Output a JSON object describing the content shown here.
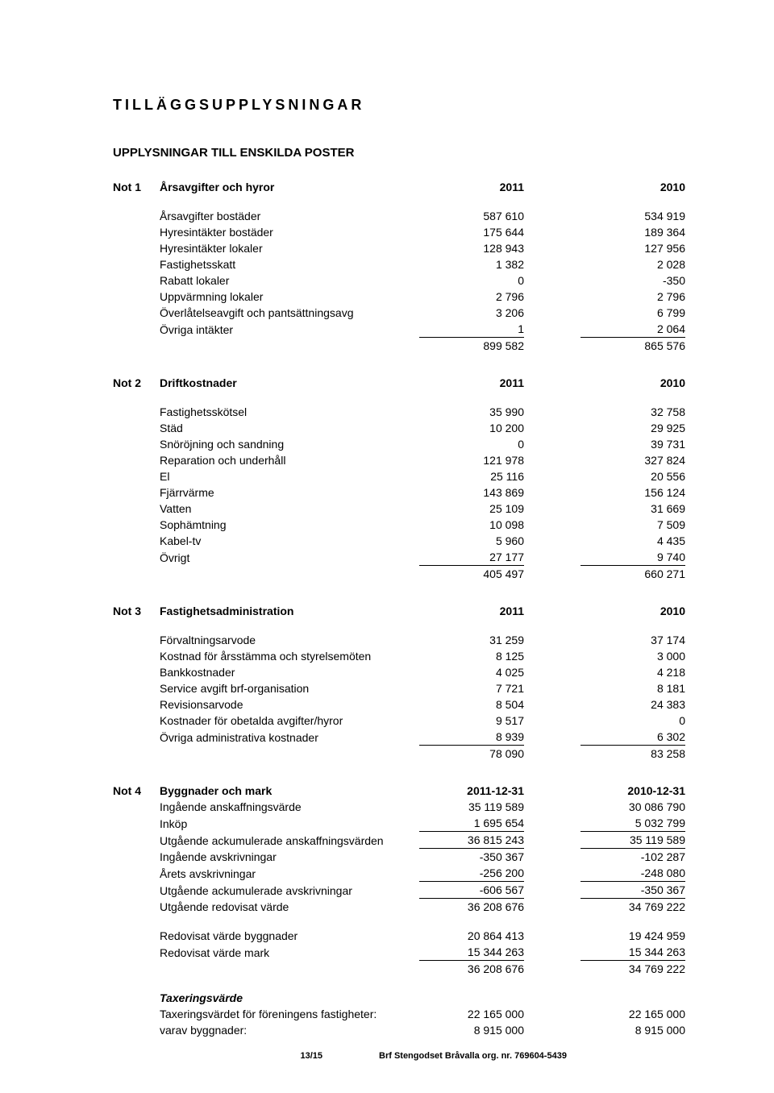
{
  "title": "TILLÄGGSUPPLYSNINGAR",
  "subtitle": "UPPLYSNINGAR TILL ENSKILDA POSTER",
  "notes": {
    "n1": {
      "tag": "Not 1",
      "header": {
        "label": "Årsavgifter och hyror",
        "c1": "2011",
        "c2": "2010"
      },
      "rows": [
        {
          "label": "Årsavgifter bostäder",
          "c1": "587 610",
          "c2": "534 919"
        },
        {
          "label": "Hyresintäkter bostäder",
          "c1": "175 644",
          "c2": "189 364"
        },
        {
          "label": "Hyresintäkter lokaler",
          "c1": "128 943",
          "c2": "127 956"
        },
        {
          "label": "Fastighetsskatt",
          "c1": "1 382",
          "c2": "2 028"
        },
        {
          "label": "Rabatt lokaler",
          "c1": "0",
          "c2": "-350"
        },
        {
          "label": "Uppvärmning lokaler",
          "c1": "2 796",
          "c2": "2 796"
        },
        {
          "label": "Överlåtelseavgift och pantsättningsavg",
          "c1": "3 206",
          "c2": "6 799"
        },
        {
          "label": "Övriga intäkter",
          "c1": "1",
          "c2": "2 064",
          "under": true
        }
      ],
      "total": {
        "label": "",
        "c1": "899 582",
        "c2": "865 576"
      }
    },
    "n2": {
      "tag": "Not 2",
      "header": {
        "label": "Driftkostnader",
        "c1": "2011",
        "c2": "2010"
      },
      "rows": [
        {
          "label": "Fastighetsskötsel",
          "c1": "35 990",
          "c2": "32 758"
        },
        {
          "label": "Städ",
          "c1": "10 200",
          "c2": "29 925"
        },
        {
          "label": "Snöröjning och sandning",
          "c1": "0",
          "c2": "39 731"
        },
        {
          "label": "Reparation och underhåll",
          "c1": "121 978",
          "c2": "327 824"
        },
        {
          "label": "El",
          "c1": "25 116",
          "c2": "20 556"
        },
        {
          "label": "Fjärrvärme",
          "c1": "143 869",
          "c2": "156 124"
        },
        {
          "label": "Vatten",
          "c1": "25 109",
          "c2": "31 669"
        },
        {
          "label": "Sophämtning",
          "c1": "10 098",
          "c2": "7 509"
        },
        {
          "label": "Kabel-tv",
          "c1": "5 960",
          "c2": "4 435"
        },
        {
          "label": "Övrigt",
          "c1": "27 177",
          "c2": "9 740",
          "under": true
        }
      ],
      "total": {
        "label": "",
        "c1": "405 497",
        "c2": "660 271"
      }
    },
    "n3": {
      "tag": "Not 3",
      "header": {
        "label": "Fastighetsadministration",
        "c1": "2011",
        "c2": "2010"
      },
      "rows": [
        {
          "label": "Förvaltningsarvode",
          "c1": "31 259",
          "c2": "37 174"
        },
        {
          "label": "Kostnad för årsstämma och styrelsemöten",
          "c1": "8 125",
          "c2": "3 000"
        },
        {
          "label": "Bankkostnader",
          "c1": "4 025",
          "c2": "4 218"
        },
        {
          "label": "Service avgift brf-organisation",
          "c1": "7 721",
          "c2": "8 181"
        },
        {
          "label": "Revisionsarvode",
          "c1": "8 504",
          "c2": "24 383"
        },
        {
          "label": "Kostnader för obetalda avgifter/hyror",
          "c1": "9 517",
          "c2": "0"
        },
        {
          "label": "Övriga administrativa kostnader",
          "c1": "8 939",
          "c2": "6 302",
          "under": true
        }
      ],
      "total": {
        "label": "",
        "c1": "78 090",
        "c2": "83 258"
      }
    },
    "n4": {
      "tag": "Not 4",
      "header": {
        "label": "Byggnader och mark",
        "c1": "2011-12-31",
        "c2": "2010-12-31"
      },
      "rows": [
        {
          "label": "Ingående anskaffningsvärde",
          "c1": "35 119 589",
          "c2": "30 086 790"
        },
        {
          "label": "Inköp",
          "c1": "1 695 654",
          "c2": "5 032 799",
          "under": true
        },
        {
          "label": "Utgående ackumulerade anskaffningsvärden",
          "c1": "36 815 243",
          "c2": "35 119 589",
          "under": true
        },
        {
          "label": "Ingående avskrivningar",
          "c1": "-350 367",
          "c2": "-102 287"
        },
        {
          "label": "Årets avskrivningar",
          "c1": "-256 200",
          "c2": "-248 080",
          "under": true
        },
        {
          "label": "Utgående ackumulerade avskrivningar",
          "c1": "-606 567",
          "c2": "-350 367",
          "under": true
        },
        {
          "label": "Utgående redovisat värde",
          "c1": "36 208 676",
          "c2": "34 769 222"
        }
      ],
      "rows2": [
        {
          "label": "Redovisat värde byggnader",
          "c1": "20 864 413",
          "c2": "19 424 959"
        },
        {
          "label": "Redovisat värde mark",
          "c1": "15 344 263",
          "c2": "15 344 263",
          "under": true
        },
        {
          "label": "",
          "c1": "36 208 676",
          "c2": "34 769 222"
        }
      ],
      "tax_header": "Taxeringsvärde",
      "tax_rows": [
        {
          "label": "Taxeringsvärdet för föreningens fastigheter:",
          "c1": "22 165 000",
          "c2": "22 165 000"
        },
        {
          "label": "varav byggnader:",
          "c1": "8 915 000",
          "c2": "8 915 000"
        }
      ]
    }
  },
  "footer": {
    "page": "13/15",
    "org": "Brf Stengodset Bråvalla org. nr. 769604-5439"
  }
}
